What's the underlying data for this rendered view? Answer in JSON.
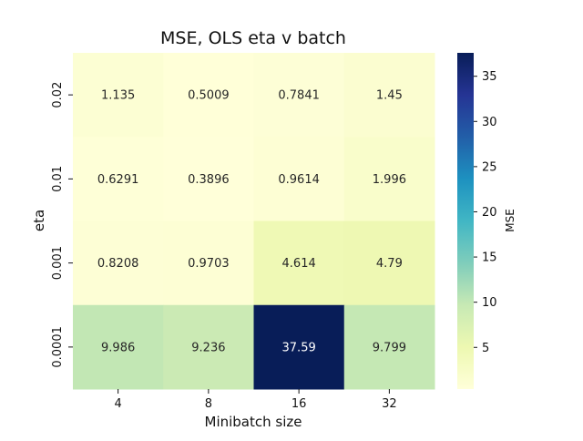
{
  "chart_data": {
    "type": "heatmap",
    "title": "MSE, OLS eta v batch",
    "xlabel": "Minibatch size",
    "ylabel": "eta",
    "x_categories": [
      "4",
      "8",
      "16",
      "32"
    ],
    "y_categories": [
      "0.02",
      "0.01",
      "0.001",
      "0.0001"
    ],
    "values": [
      [
        1.135,
        0.5009,
        0.7841,
        1.45
      ],
      [
        0.6291,
        0.3896,
        0.9614,
        1.996
      ],
      [
        0.8208,
        0.9703,
        4.614,
        4.79
      ],
      [
        9.986,
        9.236,
        37.59,
        9.799
      ]
    ],
    "cell_labels": [
      [
        "1.135",
        "0.5009",
        "0.7841",
        "1.45"
      ],
      [
        "0.6291",
        "0.3896",
        "0.9614",
        "1.996"
      ],
      [
        "0.8208",
        "0.9703",
        "4.614",
        "4.79"
      ],
      [
        "9.986",
        "9.236",
        "37.59",
        "9.799"
      ]
    ],
    "colormap": "YlGnBu",
    "colorbar": {
      "label": "MSE",
      "min": 0.3896,
      "max": 37.59,
      "ticks": [
        "5",
        "10",
        "15",
        "20",
        "25",
        "30",
        "35"
      ]
    }
  }
}
